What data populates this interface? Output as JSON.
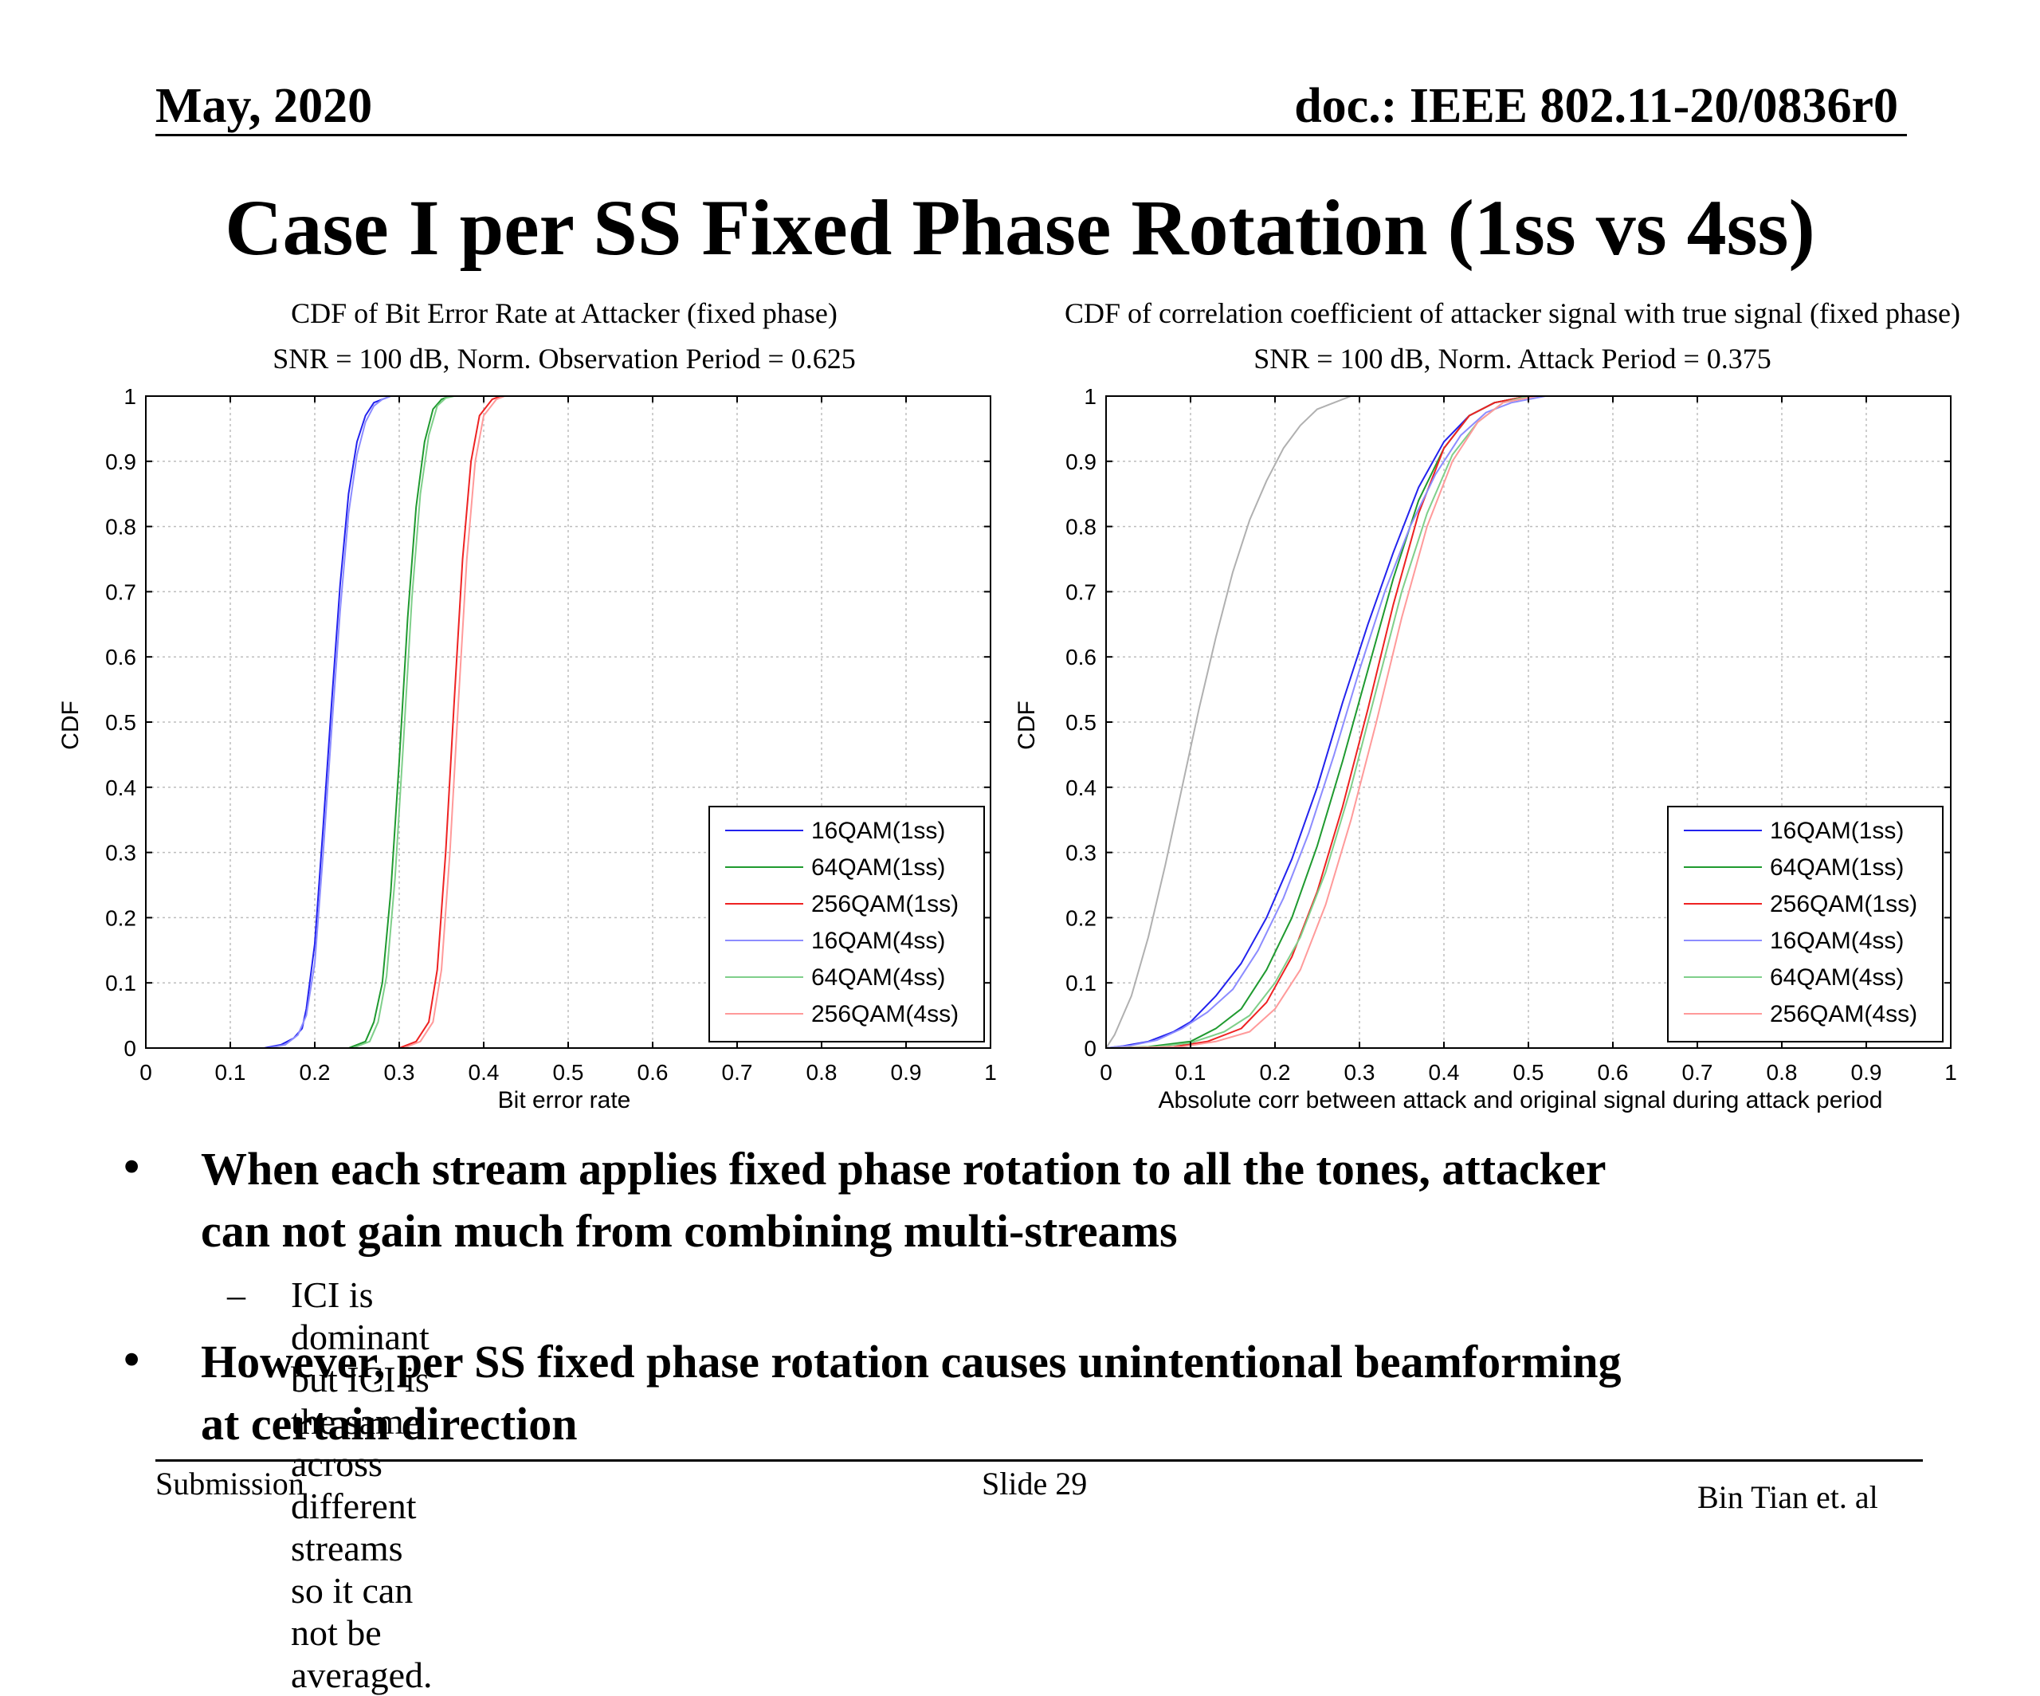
{
  "header": {
    "date": "May, 2020",
    "doc": "doc.: IEEE 802.11-20/0836r0"
  },
  "slide_title": "Case I per SS Fixed Phase Rotation (1ss vs 4ss)",
  "bullets": {
    "b1_line1": "When each stream applies fixed phase rotation to all the tones,  attacker",
    "b1_line2": "can not gain much from combining multi-streams",
    "sub1": "ICI is dominant but ICI is the same across different streams so it can not be averaged.",
    "b2_line1": "However, per SS fixed phase rotation causes unintentional beamforming",
    "b2_line2": "at certain direction",
    "dot": "•",
    "dash": "–"
  },
  "footer": {
    "left": "Submission",
    "center": "Slide 29",
    "right": "Bin Tian et. al"
  },
  "colors": {
    "blue": "#2222ee",
    "green": "#1f9a2f",
    "red": "#ee2222",
    "blue_light": "#8c8cff",
    "green_light": "#7fcf8a",
    "red_light": "#ff9a9a",
    "gray": "#b0b0b0"
  },
  "chart_data": [
    {
      "type": "line",
      "title": "CDF of Bit Error Rate at Attacker (fixed phase)",
      "subtitle": "SNR = 100 dB, Norm. Observation Period = 0.625",
      "xlabel": "Bit error rate",
      "ylabel": "CDF",
      "xlim": [
        0,
        1
      ],
      "ylim": [
        0,
        1
      ],
      "xticks": [
        "0",
        "0.1",
        "0.2",
        "0.3",
        "0.4",
        "0.5",
        "0.6",
        "0.7",
        "0.8",
        "0.9",
        "1"
      ],
      "yticks": [
        "0",
        "0.1",
        "0.2",
        "0.3",
        "0.4",
        "0.5",
        "0.6",
        "0.7",
        "0.8",
        "0.9",
        "1"
      ],
      "grid": true,
      "legend_position": "lower-right",
      "series": [
        {
          "name": "16QAM(1ss)",
          "color": "#2222ee",
          "x": [
            0,
            0.14,
            0.16,
            0.175,
            0.185,
            0.19,
            0.2,
            0.21,
            0.22,
            0.23,
            0.24,
            0.25,
            0.26,
            0.27,
            0.28,
            0.29,
            0.3,
            0.32,
            1
          ],
          "y": [
            0,
            0,
            0.005,
            0.015,
            0.03,
            0.06,
            0.16,
            0.34,
            0.53,
            0.71,
            0.85,
            0.93,
            0.97,
            0.99,
            0.995,
            1,
            1,
            1,
            1
          ]
        },
        {
          "name": "64QAM(1ss)",
          "color": "#1f9a2f",
          "x": [
            0,
            0.24,
            0.26,
            0.27,
            0.28,
            0.29,
            0.3,
            0.31,
            0.32,
            0.33,
            0.34,
            0.35,
            0.36,
            0.37,
            0.38,
            1
          ],
          "y": [
            0,
            0,
            0.01,
            0.04,
            0.1,
            0.24,
            0.44,
            0.66,
            0.83,
            0.93,
            0.98,
            0.995,
            1,
            1,
            1,
            1
          ]
        },
        {
          "name": "256QAM(1ss)",
          "color": "#ee2222",
          "x": [
            0,
            0.3,
            0.32,
            0.335,
            0.345,
            0.355,
            0.365,
            0.375,
            0.385,
            0.395,
            0.41,
            0.42,
            0.43,
            1
          ],
          "y": [
            0,
            0,
            0.01,
            0.04,
            0.12,
            0.3,
            0.53,
            0.75,
            0.9,
            0.97,
            0.995,
            1,
            1,
            1
          ]
        },
        {
          "name": "16QAM(4ss)",
          "color": "#8c8cff",
          "x": [
            0,
            0.145,
            0.165,
            0.18,
            0.19,
            0.2,
            0.21,
            0.22,
            0.23,
            0.24,
            0.25,
            0.26,
            0.27,
            0.28,
            0.29,
            0.3,
            0.32,
            1
          ],
          "y": [
            0,
            0,
            0.005,
            0.02,
            0.05,
            0.13,
            0.3,
            0.49,
            0.67,
            0.82,
            0.91,
            0.96,
            0.985,
            0.995,
            1,
            1,
            1,
            1
          ]
        },
        {
          "name": "64QAM(4ss)",
          "color": "#7fcf8a",
          "x": [
            0,
            0.245,
            0.265,
            0.275,
            0.285,
            0.295,
            0.305,
            0.315,
            0.325,
            0.335,
            0.345,
            0.355,
            0.365,
            0.375,
            1
          ],
          "y": [
            0,
            0,
            0.01,
            0.04,
            0.11,
            0.26,
            0.47,
            0.69,
            0.85,
            0.94,
            0.985,
            0.997,
            1,
            1,
            1
          ]
        },
        {
          "name": "256QAM(4ss)",
          "color": "#ff9a9a",
          "x": [
            0,
            0.305,
            0.325,
            0.34,
            0.35,
            0.36,
            0.37,
            0.38,
            0.39,
            0.4,
            0.415,
            0.425,
            0.435,
            1
          ],
          "y": [
            0,
            0,
            0.01,
            0.04,
            0.12,
            0.3,
            0.53,
            0.75,
            0.9,
            0.97,
            0.995,
            1,
            1,
            1
          ]
        }
      ]
    },
    {
      "type": "line",
      "title": "CDF of correlation coefficient of attacker signal with true  signal (fixed phase)",
      "subtitle": "SNR = 100 dB, Norm. Attack Period = 0.375",
      "xlabel": "Absolute corr between attack and original signal during attack period",
      "ylabel": "CDF",
      "xlim": [
        0,
        1
      ],
      "ylim": [
        0,
        1
      ],
      "xticks": [
        "0",
        "0.1",
        "0.2",
        "0.3",
        "0.4",
        "0.5",
        "0.6",
        "0.7",
        "0.8",
        "0.9",
        "1"
      ],
      "yticks": [
        "0",
        "0.1",
        "0.2",
        "0.3",
        "0.4",
        "0.5",
        "0.6",
        "0.7",
        "0.8",
        "0.9",
        "1"
      ],
      "grid": true,
      "legend_position": "lower-right",
      "series": [
        {
          "name": "16QAM(1ss)",
          "color": "#2222ee",
          "x": [
            0,
            0.02,
            0.05,
            0.08,
            0.1,
            0.13,
            0.16,
            0.19,
            0.22,
            0.25,
            0.28,
            0.31,
            0.34,
            0.37,
            0.4,
            0.43,
            0.46,
            0.5,
            1
          ],
          "y": [
            0,
            0.003,
            0.01,
            0.025,
            0.04,
            0.08,
            0.13,
            0.2,
            0.29,
            0.4,
            0.53,
            0.65,
            0.76,
            0.86,
            0.93,
            0.97,
            0.99,
            1,
            1
          ]
        },
        {
          "name": "64QAM(1ss)",
          "color": "#1f9a2f",
          "x": [
            0,
            0.05,
            0.1,
            0.13,
            0.16,
            0.19,
            0.22,
            0.25,
            0.28,
            0.31,
            0.34,
            0.37,
            0.4,
            0.43,
            0.46,
            0.5,
            1
          ],
          "y": [
            0,
            0.002,
            0.01,
            0.03,
            0.06,
            0.12,
            0.2,
            0.31,
            0.44,
            0.58,
            0.72,
            0.84,
            0.92,
            0.97,
            0.99,
            1,
            1
          ]
        },
        {
          "name": "256QAM(1ss)",
          "color": "#ee2222",
          "x": [
            0,
            0.08,
            0.12,
            0.16,
            0.19,
            0.22,
            0.25,
            0.28,
            0.31,
            0.34,
            0.37,
            0.4,
            0.43,
            0.46,
            0.5,
            1
          ],
          "y": [
            0,
            0.002,
            0.01,
            0.03,
            0.07,
            0.14,
            0.24,
            0.37,
            0.52,
            0.68,
            0.82,
            0.92,
            0.97,
            0.99,
            1,
            1
          ]
        },
        {
          "name": "16QAM(4ss)",
          "color": "#8c8cff",
          "x": [
            0,
            0.03,
            0.06,
            0.09,
            0.12,
            0.15,
            0.18,
            0.21,
            0.24,
            0.27,
            0.3,
            0.33,
            0.36,
            0.39,
            0.42,
            0.45,
            0.48,
            0.52,
            1
          ],
          "y": [
            0,
            0.004,
            0.012,
            0.03,
            0.055,
            0.09,
            0.15,
            0.23,
            0.33,
            0.45,
            0.58,
            0.7,
            0.8,
            0.88,
            0.94,
            0.975,
            0.99,
            1,
            1
          ]
        },
        {
          "name": "64QAM(4ss)",
          "color": "#7fcf8a",
          "x": [
            0,
            0.06,
            0.1,
            0.14,
            0.17,
            0.2,
            0.23,
            0.26,
            0.29,
            0.32,
            0.35,
            0.38,
            0.41,
            0.44,
            0.47,
            0.5,
            1
          ],
          "y": [
            0,
            0.002,
            0.008,
            0.025,
            0.05,
            0.1,
            0.17,
            0.27,
            0.4,
            0.55,
            0.7,
            0.82,
            0.91,
            0.96,
            0.99,
            1,
            1
          ]
        },
        {
          "name": "256QAM(4ss)",
          "color": "#ff9a9a",
          "x": [
            0,
            0.09,
            0.13,
            0.17,
            0.2,
            0.23,
            0.26,
            0.29,
            0.32,
            0.35,
            0.38,
            0.41,
            0.44,
            0.47,
            0.51,
            1
          ],
          "y": [
            0,
            0.002,
            0.01,
            0.025,
            0.06,
            0.12,
            0.22,
            0.35,
            0.5,
            0.66,
            0.8,
            0.9,
            0.96,
            0.99,
            1,
            1
          ]
        },
        {
          "name": "",
          "color": "#b0b0b0",
          "x": [
            0,
            0.01,
            0.03,
            0.05,
            0.07,
            0.09,
            0.11,
            0.13,
            0.15,
            0.17,
            0.19,
            0.21,
            0.23,
            0.25,
            0.27,
            0.29,
            0.31,
            1
          ],
          "y": [
            0,
            0.02,
            0.08,
            0.17,
            0.28,
            0.4,
            0.52,
            0.63,
            0.73,
            0.81,
            0.87,
            0.92,
            0.955,
            0.98,
            0.99,
            1,
            1,
            1
          ]
        }
      ]
    }
  ]
}
